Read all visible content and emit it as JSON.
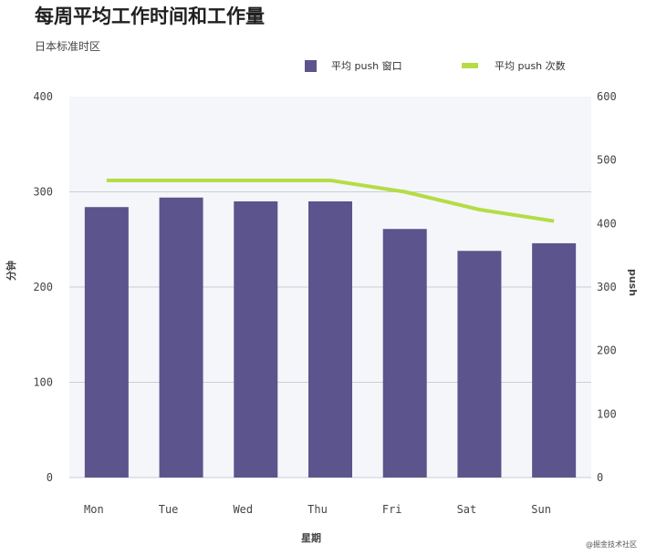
{
  "title": "每周平均工作时间和工作量",
  "subtitle": "日本标准时区",
  "watermark": "@掘金技术社区",
  "legend": {
    "bars_label": "平均 push 窗口",
    "line_label": "平均 push 次数"
  },
  "colors": {
    "bar": "#5c548c",
    "line": "#b5dc45",
    "plot_bg": "#f4f6fa",
    "grid": "#c9ced8"
  },
  "chart_data": {
    "type": "bar",
    "categories": [
      "Mon",
      "Tue",
      "Wed",
      "Thu",
      "Fri",
      "Sat",
      "Sun"
    ],
    "xlabel": "星期",
    "ylabel": "分钟",
    "y2label": "push",
    "ylim": [
      0,
      400
    ],
    "y2lim": [
      0,
      600
    ],
    "yticks": [
      0,
      100,
      200,
      300,
      400
    ],
    "y2ticks": [
      0,
      100,
      200,
      300,
      400,
      500,
      600
    ],
    "series": [
      {
        "name": "平均 push 窗口",
        "type": "bar",
        "axis": "left",
        "values": [
          284,
          294,
          290,
          290,
          261,
          238,
          246
        ]
      },
      {
        "name": "平均 push 次数",
        "type": "line",
        "axis": "right",
        "values": [
          468,
          468,
          468,
          468,
          450,
          422,
          404
        ]
      }
    ],
    "legend_position": "top-right",
    "grid": true
  }
}
